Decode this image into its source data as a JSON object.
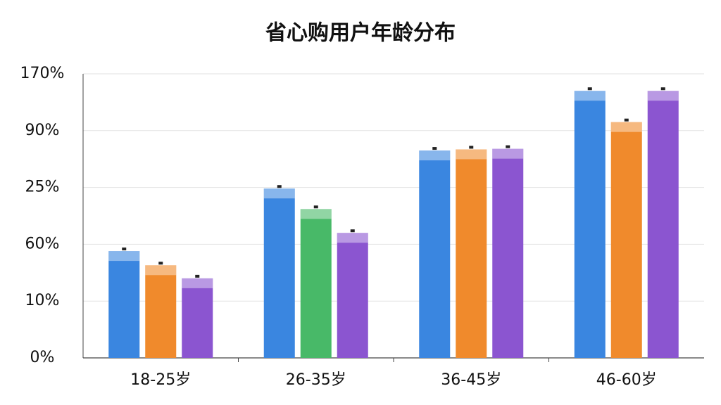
{
  "chart_data": {
    "type": "bar",
    "title": "省心购用户年龄分布",
    "categories": [
      "18-25岁",
      "26-35岁",
      "36-45岁",
      "46-60岁"
    ],
    "ylim": [
      0,
      5
    ],
    "yticks": [
      0,
      1,
      2,
      3,
      4,
      5
    ],
    "ytick_labels": [
      "0%",
      "10%",
      "60%",
      "25%",
      "90%",
      "170%"
    ],
    "grid": true,
    "series": [
      {
        "color": "#3a86e0",
        "values": [
          1.88,
          2.98,
          3.65,
          4.7
        ]
      },
      {
        "color": "#f08a2c",
        "colors": [
          "#f08a2c",
          "#48b968",
          "#f08a2c",
          "#f08a2c"
        ],
        "values": [
          1.63,
          2.62,
          3.67,
          4.15
        ]
      },
      {
        "color": "#8b55d0",
        "values": [
          1.4,
          2.2,
          3.68,
          4.7
        ]
      }
    ]
  }
}
